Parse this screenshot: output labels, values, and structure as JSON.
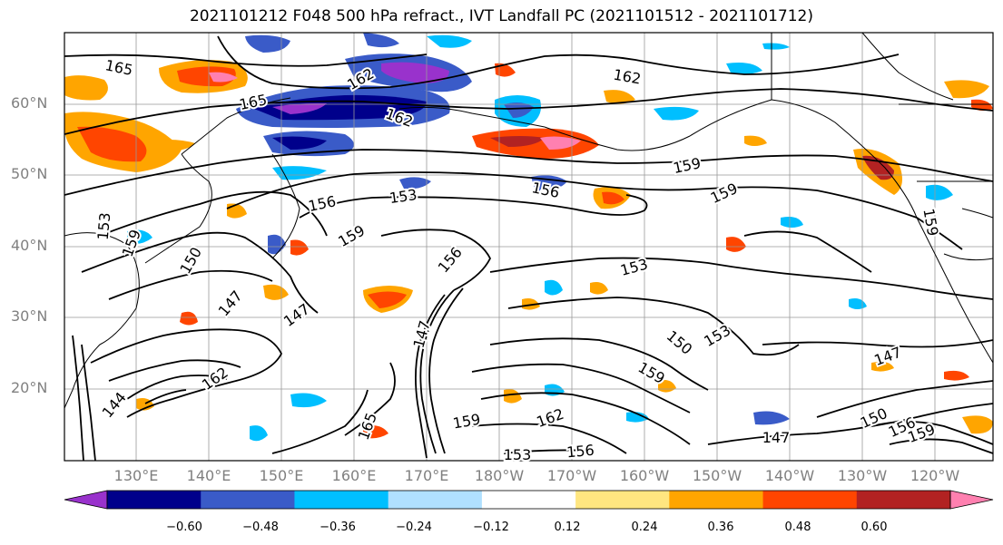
{
  "title": "2021101212 F048 500 hPa refract., IVT Landfall PC (2021101512 - 2021101712)",
  "lat_labels": [
    "60°N",
    "50°N",
    "40°N",
    "30°N",
    "20°N"
  ],
  "lon_labels": [
    "130°E",
    "140°E",
    "150°E",
    "160°E",
    "170°E",
    "180°W",
    "170°W",
    "160°W",
    "150°W",
    "140°W",
    "130°W",
    "120°W"
  ],
  "colorbar": {
    "ticks": [
      "−0.60",
      "−0.48",
      "−0.36",
      "−0.24",
      "−0.12",
      "0.12",
      "0.24",
      "0.36",
      "0.48",
      "0.60"
    ],
    "colors": [
      "#9932cc",
      "#00008b",
      "#3a5bc8",
      "#00bfff",
      "#b0e0ff",
      "#ffffff",
      "#ffe680",
      "#ffa500",
      "#ff4500",
      "#b22222",
      "#ff80b0"
    ]
  },
  "contour_labels": [
    {
      "text": "165"
    },
    {
      "text": "162"
    },
    {
      "text": "165"
    },
    {
      "text": "162"
    },
    {
      "text": "162"
    },
    {
      "text": "159"
    },
    {
      "text": "156"
    },
    {
      "text": "159"
    },
    {
      "text": "156"
    },
    {
      "text": "153"
    },
    {
      "text": "159"
    },
    {
      "text": "156"
    },
    {
      "text": "153"
    },
    {
      "text": "150"
    },
    {
      "text": "153"
    },
    {
      "text": "147"
    },
    {
      "text": "147"
    },
    {
      "text": "147"
    },
    {
      "text": "147"
    },
    {
      "text": "159"
    },
    {
      "text": "162"
    },
    {
      "text": "165"
    },
    {
      "text": "159"
    },
    {
      "text": "162"
    },
    {
      "text": "156"
    },
    {
      "text": "147"
    },
    {
      "text": "150"
    },
    {
      "text": "159"
    },
    {
      "text": "156"
    },
    {
      "text": "153"
    },
    {
      "text": "144"
    },
    {
      "text": "153"
    },
    {
      "text": "159"
    },
    {
      "text": "159"
    },
    {
      "text": "150"
    }
  ]
}
